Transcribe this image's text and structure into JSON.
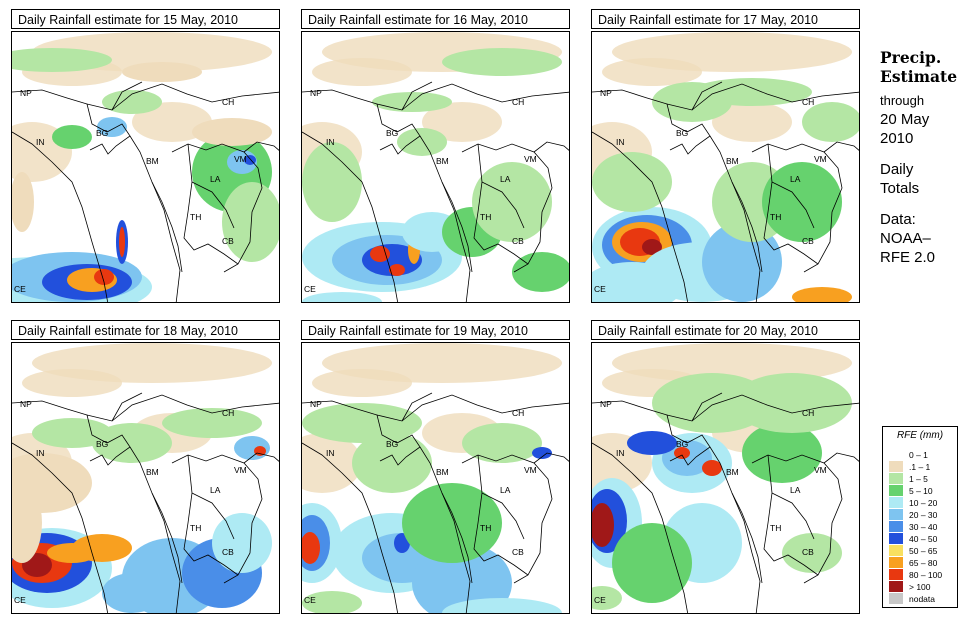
{
  "panels": [
    {
      "title": "Daily Rainfall estimate for  15 May, 2010"
    },
    {
      "title": "Daily Rainfall estimate for  16 May, 2010"
    },
    {
      "title": "Daily Rainfall estimate for  17 May, 2010"
    },
    {
      "title": "Daily Rainfall estimate for  18 May, 2010"
    },
    {
      "title": "Daily Rainfall estimate for  19 May, 2010"
    },
    {
      "title": "Daily Rainfall estimate for  20 May, 2010"
    }
  ],
  "map_labels": {
    "np": "NP",
    "ch": "CH",
    "in": "IN",
    "bg": "BG",
    "bm": "BM",
    "vm": "VM",
    "la": "LA",
    "th": "TH",
    "cb": "CB",
    "ce": "CE"
  },
  "legend": {
    "heading_1": "Precip.",
    "heading_2": "Estimate",
    "through": "through",
    "date_1": "20 May",
    "date_2": "2010",
    "daily_1": "Daily",
    "daily_2": "Totals",
    "data_1": "Data:",
    "data_2": "NOAA–",
    "data_3": "RFE 2.0"
  },
  "colorbar": {
    "title": "RFE (mm)",
    "classes": [
      {
        "label": "0 – 1",
        "color": "#ffffff"
      },
      {
        "label": ".1 – 1",
        "color": "#efdcbc"
      },
      {
        "label": "1 – 5",
        "color": "#b4e6a4"
      },
      {
        "label": "5 – 10",
        "color": "#66d26e"
      },
      {
        "label": "10 – 20",
        "color": "#aeeaf4"
      },
      {
        "label": "20 – 30",
        "color": "#7ec4f0"
      },
      {
        "label": "30 – 40",
        "color": "#4a8ee8"
      },
      {
        "label": "40 – 50",
        "color": "#2250dc"
      },
      {
        "label": "50 – 65",
        "color": "#f8e060"
      },
      {
        "label": "65 – 80",
        "color": "#f8a020"
      },
      {
        "label": "80 – 100",
        "color": "#e83810"
      },
      {
        "label": "> 100",
        "color": "#a01818"
      },
      {
        "label": "nodata",
        "color": "#c8c8c8"
      }
    ]
  }
}
